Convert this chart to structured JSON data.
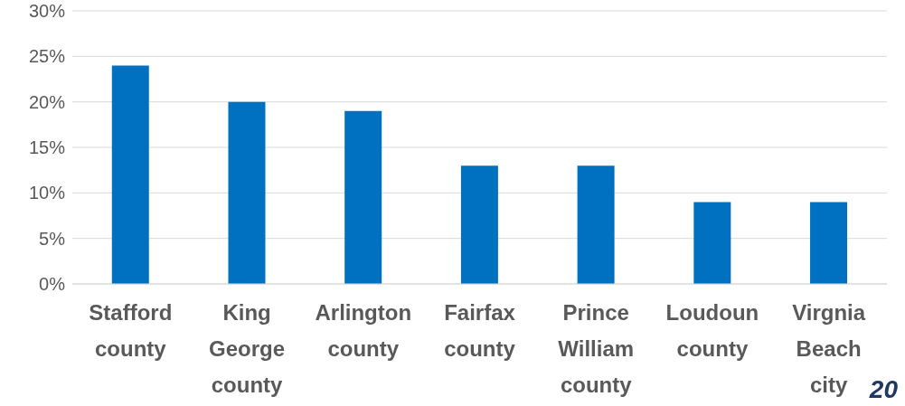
{
  "chart_data": {
    "type": "bar",
    "categories": [
      "Stafford county",
      "King George county",
      "Arlington county",
      "Fairfax county",
      "Prince William county",
      "Loudoun county",
      "Virgnia Beach city"
    ],
    "values": [
      24,
      20,
      19,
      13,
      13,
      9,
      9
    ],
    "color": "#0070c0",
    "ylim": [
      0,
      30
    ],
    "yticks": [
      {
        "value": 0,
        "label": "0%"
      },
      {
        "value": 5,
        "label": "5%"
      },
      {
        "value": 10,
        "label": "10%"
      },
      {
        "value": 15,
        "label": "15%"
      },
      {
        "value": 20,
        "label": "20%"
      },
      {
        "value": 25,
        "label": "25%"
      },
      {
        "value": 30,
        "label": "30%"
      }
    ],
    "grid": "y",
    "annotations": [
      "20"
    ]
  }
}
